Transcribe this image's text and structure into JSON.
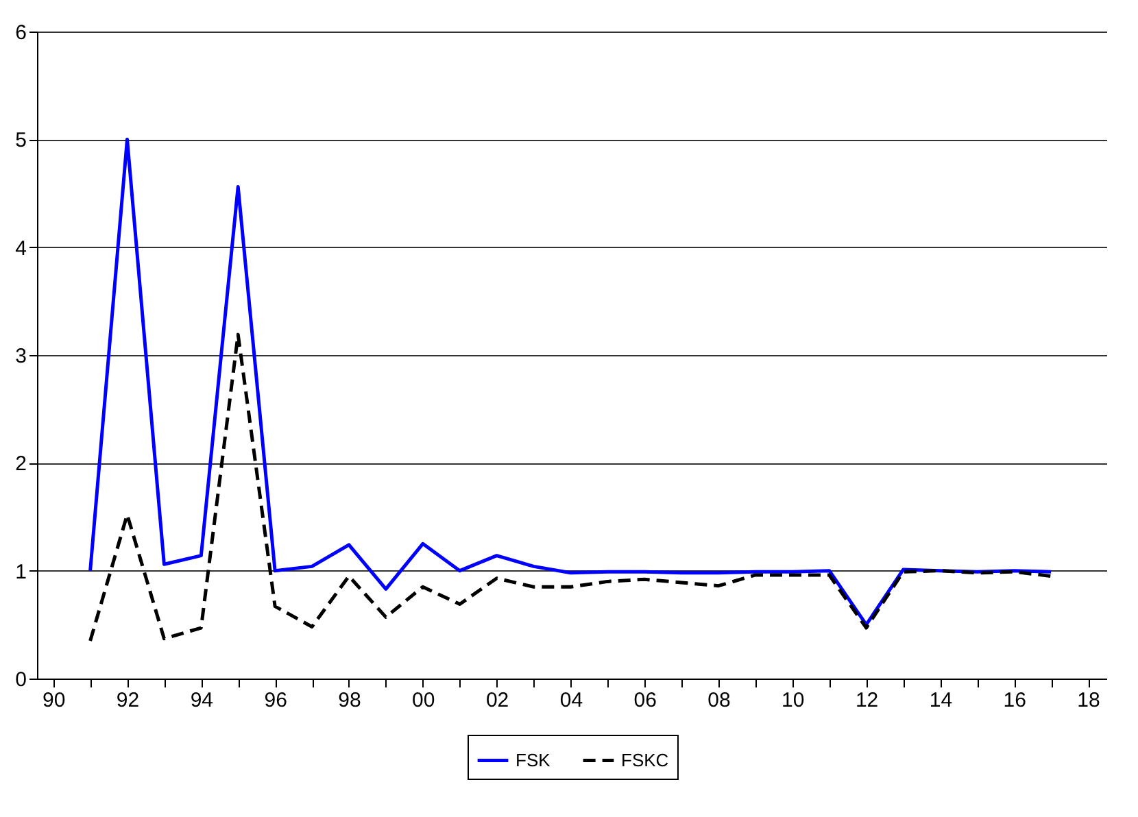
{
  "chart_data": {
    "type": "line",
    "x": [
      1991,
      1992,
      1993,
      1994,
      1995,
      1996,
      1997,
      1998,
      1999,
      2000,
      2001,
      2002,
      2003,
      2004,
      2005,
      2006,
      2007,
      2008,
      2009,
      2010,
      2011,
      2012,
      2013,
      2014,
      2015,
      2016,
      2017
    ],
    "series": [
      {
        "name": "FSK",
        "color": "#0000ff",
        "line_style": "solid",
        "values": [
          1.0,
          5.0,
          1.06,
          1.14,
          4.56,
          1.0,
          1.04,
          1.24,
          0.83,
          1.25,
          1.0,
          1.14,
          1.04,
          0.98,
          0.99,
          0.99,
          0.98,
          0.98,
          0.99,
          0.99,
          1.0,
          0.5,
          1.01,
          1.0,
          0.99,
          1.0,
          0.99
        ]
      },
      {
        "name": "FSKC",
        "color": "#000000",
        "line_style": "dashed",
        "values": [
          0.35,
          1.52,
          0.37,
          0.47,
          3.19,
          0.67,
          0.48,
          0.95,
          0.57,
          0.85,
          0.69,
          0.93,
          0.85,
          0.85,
          0.9,
          0.92,
          0.89,
          0.86,
          0.96,
          0.96,
          0.96,
          0.47,
          0.99,
          1.0,
          0.98,
          0.99,
          0.95
        ]
      }
    ],
    "xlim": [
      1989.56,
      2018.5
    ],
    "xticks": [
      {
        "value": 1990,
        "label": "90"
      },
      {
        "value": 1991,
        "label": null
      },
      {
        "value": 1992,
        "label": "92"
      },
      {
        "value": 1993,
        "label": null
      },
      {
        "value": 1994,
        "label": "94"
      },
      {
        "value": 1995,
        "label": null
      },
      {
        "value": 1996,
        "label": "96"
      },
      {
        "value": 1997,
        "label": null
      },
      {
        "value": 1998,
        "label": "98"
      },
      {
        "value": 1999,
        "label": null
      },
      {
        "value": 2000,
        "label": "00"
      },
      {
        "value": 2001,
        "label": null
      },
      {
        "value": 2002,
        "label": "02"
      },
      {
        "value": 2003,
        "label": null
      },
      {
        "value": 2004,
        "label": "04"
      },
      {
        "value": 2005,
        "label": null
      },
      {
        "value": 2006,
        "label": "06"
      },
      {
        "value": 2007,
        "label": null
      },
      {
        "value": 2008,
        "label": "08"
      },
      {
        "value": 2009,
        "label": null
      },
      {
        "value": 2010,
        "label": "10"
      },
      {
        "value": 2011,
        "label": null
      },
      {
        "value": 2012,
        "label": "12"
      },
      {
        "value": 2013,
        "label": null
      },
      {
        "value": 2014,
        "label": "14"
      },
      {
        "value": 2015,
        "label": null
      },
      {
        "value": 2016,
        "label": "16"
      },
      {
        "value": 2017,
        "label": null
      },
      {
        "value": 2018,
        "label": "18"
      }
    ],
    "ylim": [
      0,
      6
    ],
    "yticks": [
      0,
      1,
      2,
      3,
      4,
      5,
      6
    ],
    "grid": "y",
    "legend": "bottom"
  }
}
